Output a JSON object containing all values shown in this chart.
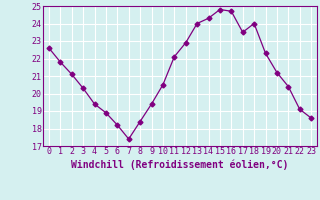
{
  "x": [
    0,
    1,
    2,
    3,
    4,
    5,
    6,
    7,
    8,
    9,
    10,
    11,
    12,
    13,
    14,
    15,
    16,
    17,
    18,
    19,
    20,
    21,
    22,
    23
  ],
  "y": [
    22.6,
    21.8,
    21.1,
    20.3,
    19.4,
    18.9,
    18.2,
    17.4,
    18.4,
    19.4,
    20.5,
    22.1,
    22.9,
    24.0,
    24.3,
    24.8,
    24.7,
    23.5,
    24.0,
    22.3,
    21.2,
    20.4,
    19.1,
    18.6
  ],
  "xlabel": "Windchill (Refroidissement éolien,°C)",
  "ylim": [
    17,
    25
  ],
  "xlim": [
    -0.5,
    23.5
  ],
  "yticks": [
    17,
    18,
    19,
    20,
    21,
    22,
    23,
    24,
    25
  ],
  "xticks": [
    0,
    1,
    2,
    3,
    4,
    5,
    6,
    7,
    8,
    9,
    10,
    11,
    12,
    13,
    14,
    15,
    16,
    17,
    18,
    19,
    20,
    21,
    22,
    23
  ],
  "line_color": "#800080",
  "marker": "D",
  "marker_size": 2.5,
  "bg_color": "#d5f0f0",
  "grid_color": "#ffffff",
  "tick_color": "#800080",
  "label_color": "#800080",
  "tick_fontsize": 6.0,
  "xlabel_fontsize": 7.0
}
